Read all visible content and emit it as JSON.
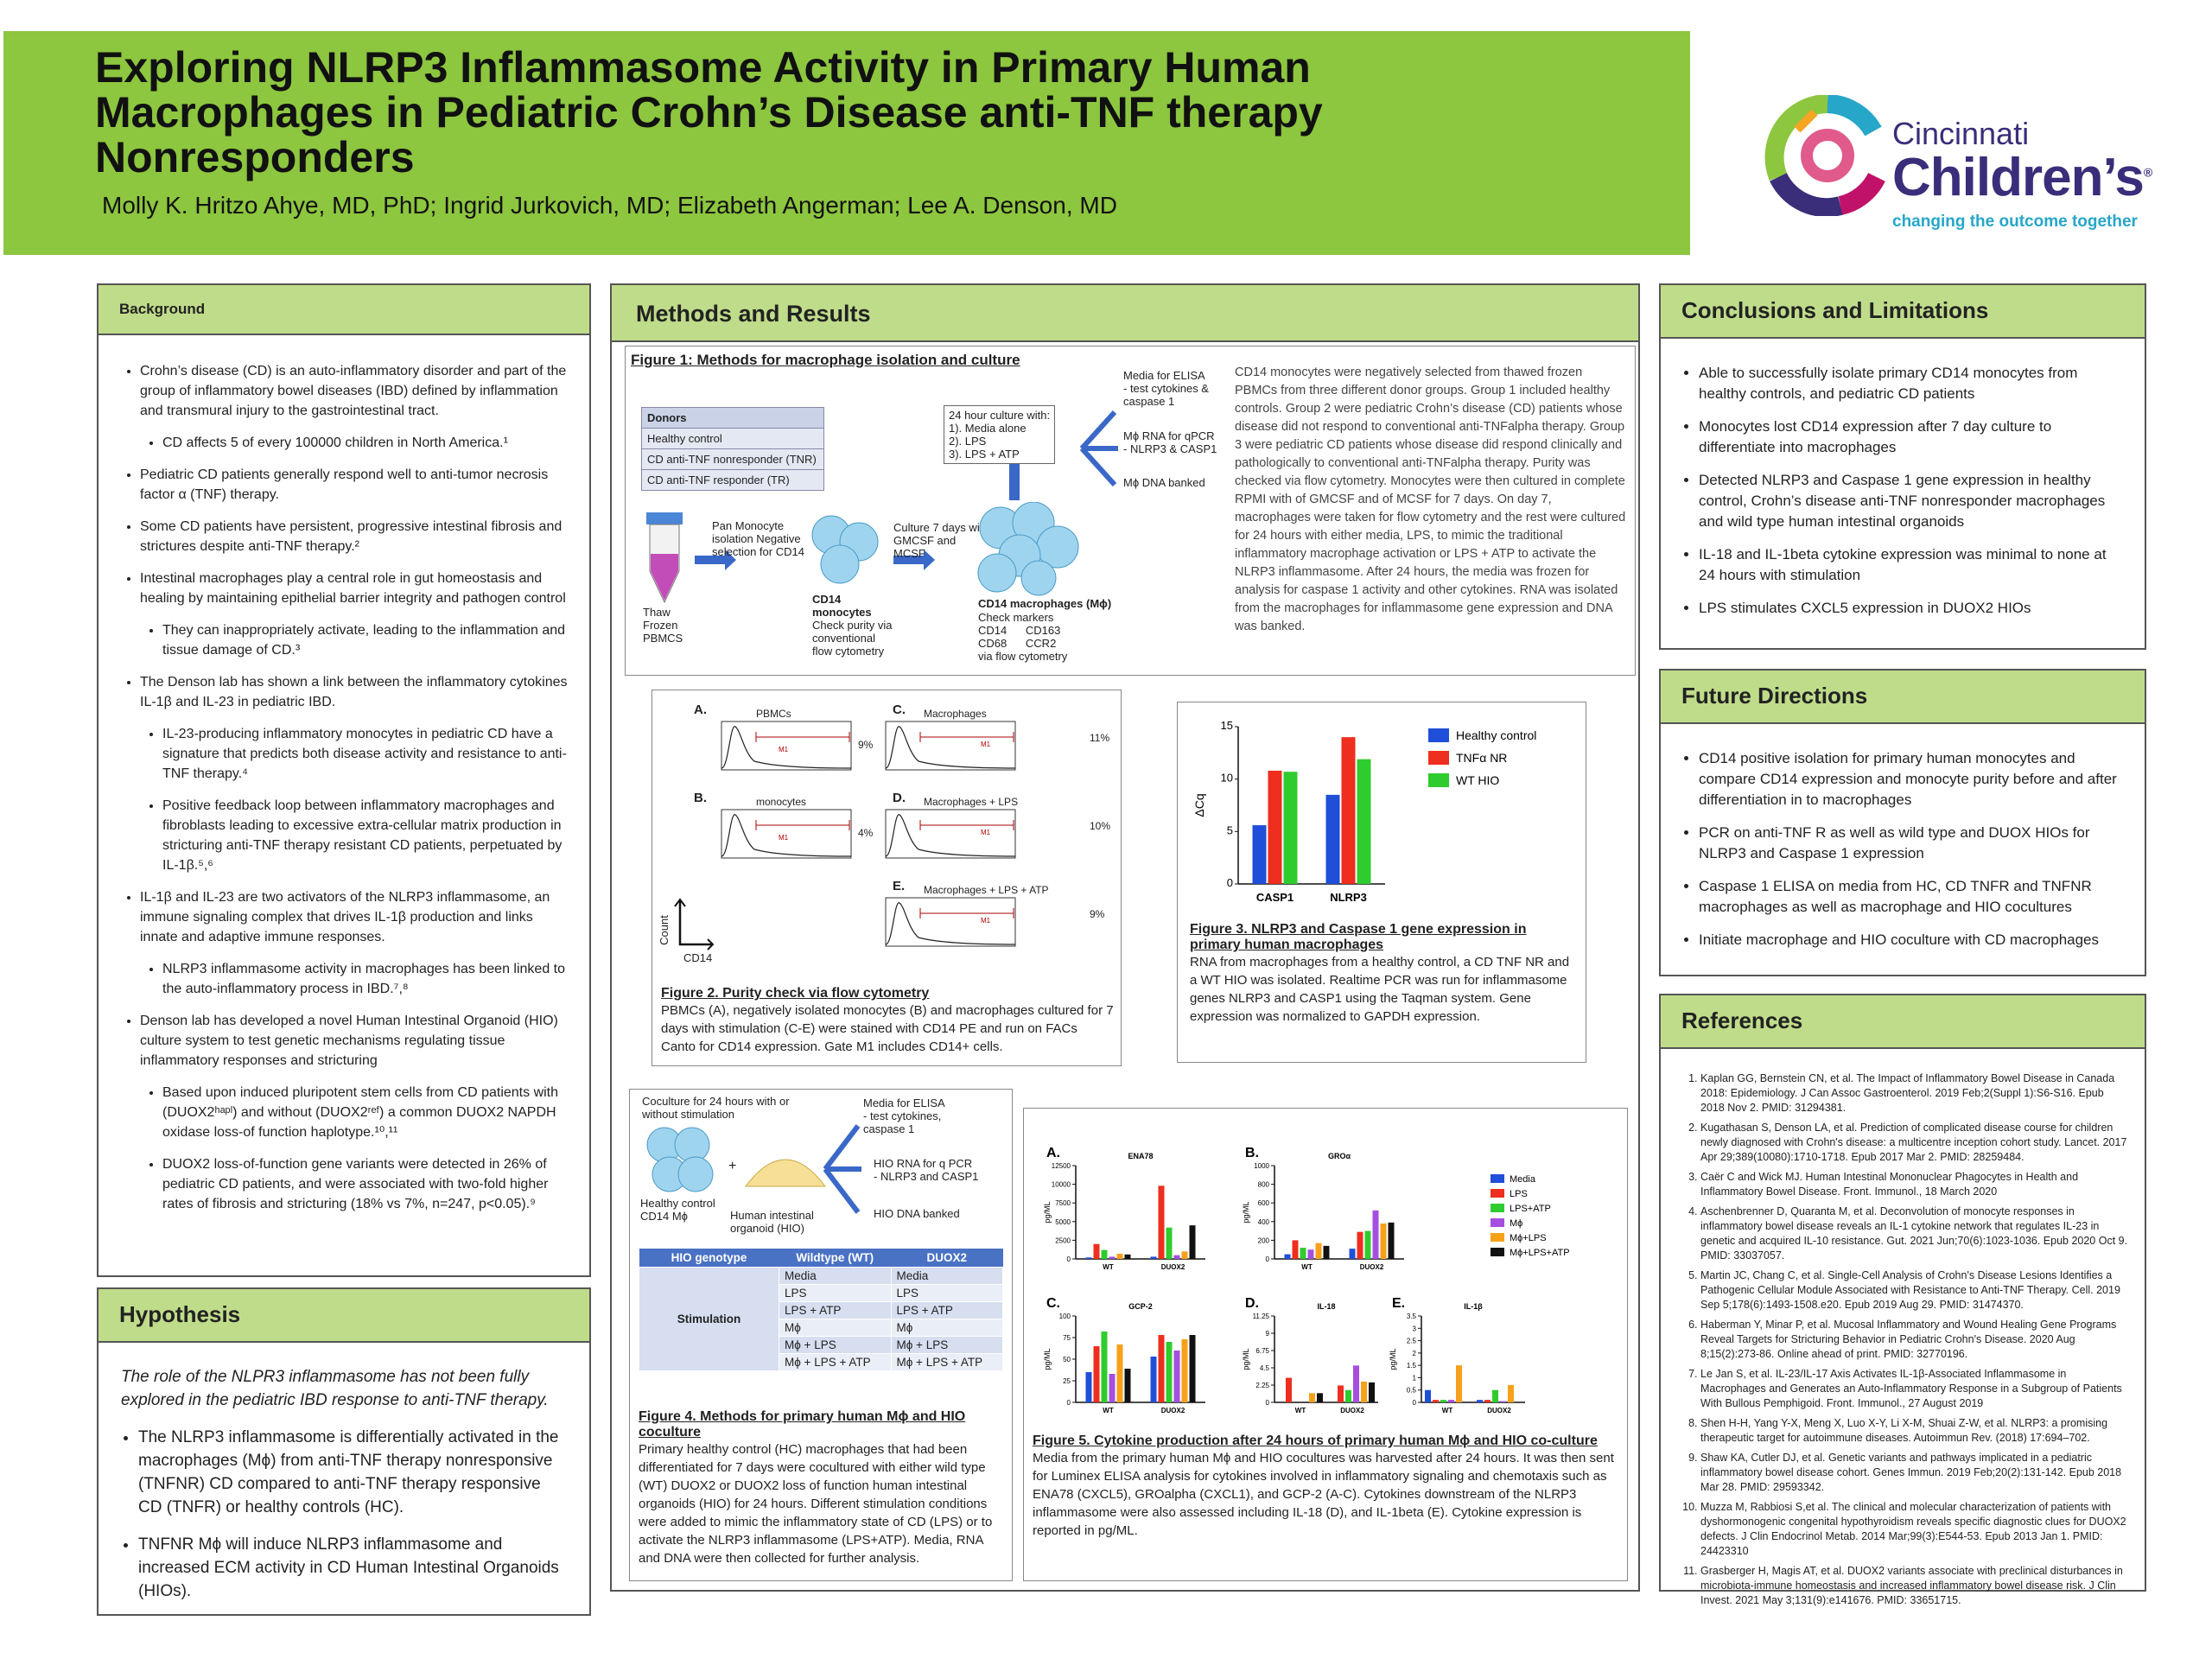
{
  "header": {
    "title_lines": [
      "Exploring NLRP3 Inflammasome Activity in Primary Human",
      "Macrophages in Pediatric Crohn’s Disease anti-TNF therapy",
      "Nonresponders"
    ],
    "authors": "Molly K. Hritzo Ahye, MD, PhD; Ingrid Jurkovich, MD; Elizabeth Angerman; Lee A. Denson, MD"
  },
  "logo": {
    "line1": "Cincinnati",
    "line2": "Children’s",
    "tagline": "changing the outcome together",
    "mark": "®"
  },
  "background": {
    "heading": "Background",
    "items": [
      {
        "level": 1,
        "text": "Crohn’s disease (CD) is an auto-inflammatory disorder and part of the group of inflammatory bowel diseases (IBD) defined by inflammation and transmural injury to the gastrointestinal tract."
      },
      {
        "level": 2,
        "text": "CD affects 5 of every 100000 children in North America.¹"
      },
      {
        "level": 1,
        "text": "Pediatric CD patients generally respond well to anti-tumor necrosis factor α (TNF) therapy."
      },
      {
        "level": 1,
        "text": "Some CD patients have persistent, progressive intestinal fibrosis and strictures despite anti-TNF therapy.²"
      },
      {
        "level": 1,
        "text": "Intestinal macrophages play a central role in gut homeostasis and healing by maintaining epithelial barrier integrity and pathogen control"
      },
      {
        "level": 2,
        "text": "They can inappropriately activate, leading to the inflammation and tissue damage of CD.³"
      },
      {
        "level": 1,
        "text": "The Denson lab has shown a link between the inflammatory cytokines IL-1β and IL-23 in pediatric IBD."
      },
      {
        "level": 2,
        "text": "IL-23-producing inflammatory monocytes in pediatric CD have a signature that predicts both disease activity and resistance to anti-TNF therapy.⁴"
      },
      {
        "level": 2,
        "text": "Positive feedback loop between inflammatory macrophages and fibroblasts leading to excessive extra-cellular matrix production in stricturing anti-TNF therapy resistant CD patients, perpetuated by IL-1β.⁵,⁶"
      },
      {
        "level": 1,
        "text": "IL-1β and IL-23 are two activators of the NLRP3 inflammasome, an immune signaling complex that drives IL-1β production and links innate and adaptive immune responses."
      },
      {
        "level": 2,
        "text": "NLRP3 inflammasome activity in macrophages has been linked to the auto-inflammatory process in IBD.⁷,⁸"
      },
      {
        "level": 1,
        "text": "Denson lab has developed a novel Human Intestinal Organoid (HIO) culture system to test genetic mechanisms regulating tissue inflammatory responses and stricturing"
      },
      {
        "level": 2,
        "text": "Based upon induced pluripotent stem cells from CD patients with (DUOX2ʰᵃᵖˡ) and without (DUOX2ʳᵉᶠ) a common DUOX2 NAPDH oxidase loss-of function haplotype.¹⁰,¹¹"
      },
      {
        "level": 2,
        "text": "DUOX2 loss-of-function gene variants were detected in 26% of pediatric CD patients, and were associated with two-fold higher rates of fibrosis and stricturing (18% vs 7%, n=247, p<0.05).⁹"
      }
    ]
  },
  "hypothesis": {
    "heading": "Hypothesis",
    "lead": "The role of the NLPR3 inflammasome has not been fully explored in the pediatric IBD response to anti-TNF therapy.",
    "items": [
      "The NLRP3 inflammasome is differentially activated in the macrophages (Mϕ) from anti-TNF therapy nonresponsive (TNFNR) CD compared to anti-TNF therapy responsive CD (TNFR) or healthy controls (HC).",
      "TNFNR Mϕ will induce NLRP3 inflammasome and increased ECM activity in CD Human Intestinal Organoids (HIOs)."
    ]
  },
  "methods": {
    "heading": "Methods and Results",
    "fig1": {
      "title": "Figure 1: Methods for macrophage isolation and culture",
      "donors_header": "Donors",
      "donors": [
        "Healthy control",
        "CD anti-TNF nonresponder (TNR)",
        "CD anti-TNF responder (TR)"
      ],
      "thaw": "Thaw\nFrozen\nPBMCS",
      "pan": "Pan Monocyte\nisolation Negative\nselection for CD14",
      "cd14_head": "CD14\nmonocytes",
      "cd14_body": "Check purity via\nconventional\nflow cytometry",
      "culture7": "Culture 7 days with\nGMCSF and\nMCSF",
      "mac_head": "CD14 macrophages (Mϕ)",
      "mac_body": "Check markers\nCD14      CD163\nCD68      CCR2\nvia flow cytometry",
      "culture24": "24 hour culture with:\n1). Media alone\n2). LPS\n3). LPS + ATP",
      "out1": "Media for ELISA\n- test cytokines &\ncaspase 1",
      "out2": "Mϕ RNA for qPCR\n- NLRP3 & CASP1",
      "out3": "Mϕ DNA banked",
      "text": "CD14 monocytes were negatively selected from thawed frozen PBMCs from three different donor groups. Group 1 included healthy controls. Group 2 were pediatric Crohn’s disease (CD) patients whose disease did not respond to conventional anti-TNFalpha therapy. Group 3 were pediatric CD patients whose disease did respond clinically and pathologically to conventional anti-TNFalpha therapy. Purity was checked via flow cytometry. Monocytes were then cultured in complete RPMI with of GMCSF and of MCSF for 7 days. On day 7, macrophages were taken for flow cytometry and the rest were cultured for 24 hours with either media, LPS, to mimic the traditional inflammatory macrophage activation or LPS + ATP to activate the NLRP3 inflammasome. After 24 hours, the media was frozen for analysis for caspase 1 activity and other cytokines. RNA was isolated from the macrophages for inflammasome gene expression and DNA was banked."
    },
    "fig2": {
      "panels": [
        {
          "letter": "A.",
          "name": "PBMCs",
          "pct": "9%"
        },
        {
          "letter": "B.",
          "name": "monocytes",
          "pct": "4%"
        },
        {
          "letter": "C.",
          "name": "Macrophages",
          "pct": "11%"
        },
        {
          "letter": "D.",
          "name": "Macrophages + LPS",
          "pct": "10%"
        },
        {
          "letter": "E.",
          "name": "Macrophages + LPS + ATP",
          "pct": "9%"
        }
      ],
      "gate": "M1",
      "xaxis": "CD14",
      "yaxis": "Count",
      "title": "Figure 2. Purity check via flow cytometry",
      "caption": "PBMCs (A), negatively isolated monocytes (B) and macrophages cultured for 7 days with stimulation (C-E) were stained with CD14 PE and run on FACs Canto for CD14 expression. Gate M1 includes CD14+ cells."
    },
    "fig3": {
      "title": "Figure 3. NLRP3 and Caspase 1 gene expression in primary human macrophages",
      "caption": "RNA from macrophages from a healthy control, a CD TNF NR and a WT HIO was isolated. Realtime PCR was run for inflammasome genes NLRP3 and CASP1 using the Taqman system. Gene expression was normalized to GAPDH expression."
    },
    "fig4": {
      "culture": "Coculture for 24 hours with or\nwithout stimulation",
      "out1": "Media for ELISA\n- test cytokines,\ncaspase 1",
      "out2": "HIO RNA for q PCR\n- NLRP3 and CASP1",
      "out3": "HIO DNA banked",
      "hc": "Healthy control\nCD14 Mϕ",
      "hio": "Human intestinal\norganoid (HIO)",
      "plus": "+",
      "table_header": [
        "HIO genotype",
        "Wildtype (WT)",
        "DUOX2"
      ],
      "stim_label": "Stimulation",
      "rows": [
        [
          "Media",
          "Media"
        ],
        [
          "LPS",
          "LPS"
        ],
        [
          "LPS + ATP",
          "LPS + ATP"
        ],
        [
          "Mϕ",
          "Mϕ"
        ],
        [
          "Mϕ + LPS",
          "Mϕ + LPS"
        ],
        [
          "Mϕ + LPS + ATP",
          "Mϕ + LPS + ATP"
        ]
      ],
      "title": "Figure 4. Methods for primary human Mϕ and HIO coculture",
      "caption": "Primary healthy control (HC) macrophages that had been differentiated for 7 days were cocultured with either wild type (WT) DUOX2 or DUOX2 loss of function human intestinal organoids (HIO) for 24 hours. Different stimulation conditions were added to mimic the inflammatory state of CD (LPS) or to activate the NLRP3 inflammasome (LPS+ATP). Media, RNA and DNA were then collected for further analysis."
    },
    "fig5": {
      "title": "Figure 5. Cytokine production after 24 hours of primary human Mϕ and HIO co-culture",
      "caption": "Media from the primary human Mϕ and HIO cocultures was harvested after 24 hours. It was then sent for Luminex ELISA analysis for cytokines involved in inflammatory signaling and chemotaxis such as ENA78 (CXCL5), GROalpha (CXCL1), and GCP-2 (A-C). Cytokines downstream of the NLRP3 inflammasome were also assessed including IL-18 (D), and IL-1beta (E). Cytokine expression is reported in pg/ML."
    }
  },
  "conclusions": {
    "heading": "Conclusions and Limitations",
    "items": [
      "Able to successfully isolate primary CD14 monocytes from healthy controls, and pediatric CD patients",
      "Monocytes lost CD14 expression after 7 day culture to differentiate into macrophages",
      "Detected NLRP3 and Caspase 1 gene expression in healthy control, Crohn’s disease anti-TNF nonresponder macrophages and wild type human intestinal organoids",
      "IL-18 and IL-1beta cytokine expression was minimal to none at 24 hours with stimulation",
      "LPS stimulates CXCL5 expression in DUOX2 HIOs"
    ]
  },
  "future": {
    "heading": "Future Directions",
    "items": [
      "CD14 positive isolation for primary human monocytes and compare CD14 expression and monocyte purity before and after differentiation in to macrophages",
      "PCR on anti-TNF R as well as wild type and DUOX HIOs for NLRP3 and Caspase 1 expression",
      "Caspase 1 ELISA on media from HC, CD TNFR and TNFNR macrophages as well as macrophage and HIO cocultures",
      "Initiate macrophage and HIO coculture with CD macrophages"
    ]
  },
  "references": {
    "heading": "References",
    "items": [
      "Kaplan GG, Bernstein CN, et al. The Impact of Inflammatory Bowel Disease in Canada 2018: Epidemiology. J Can Assoc Gastroenterol. 2019 Feb;2(Suppl 1):S6-S16. Epub 2018 Nov 2. PMID: 31294381.",
      "Kugathasan S, Denson LA, et al. Prediction of complicated disease course for children newly diagnosed with Crohn's disease: a multicentre inception cohort study. Lancet. 2017 Apr 29;389(10080):1710-1718. Epub 2017 Mar 2. PMID: 28259484.",
      "Caër C and Wick MJ. Human Intestinal Mononuclear Phagocytes in Health and Inflammatory Bowel Disease. Front. Immunol., 18 March 2020",
      "Aschenbrenner D, Quaranta M, et al. Deconvolution of monocyte responses in inflammatory bowel disease reveals an IL-1 cytokine network that regulates IL-23 in genetic and acquired IL-10 resistance. Gut. 2021 Jun;70(6):1023-1036. Epub 2020 Oct 9. PMID: 33037057.",
      "Martin JC, Chang C, et al. Single-Cell Analysis of Crohn's Disease Lesions Identifies a Pathogenic Cellular Module Associated with Resistance to Anti-TNF Therapy. Cell. 2019 Sep 5;178(6):1493-1508.e20. Epub 2019 Aug 29. PMID: 31474370.",
      "Haberman Y, Minar P, et al. Mucosal Inflammatory and Wound Healing Gene Programs Reveal Targets for Stricturing Behavior in Pediatric Crohn's Disease. 2020 Aug 8;15(2):273-86. Online ahead of print. PMID: 32770196.",
      "Le Jan S, et al. IL-23/IL-17 Axis Activates IL-1β-Associated Inflammasome in Macrophages and Generates an Auto-Inflammatory Response in a Subgroup of Patients With Bullous Pemphigoid. Front. Immunol., 27 August 2019",
      "Shen H-H, Yang Y-X, Meng X, Luo X-Y, Li X-M, Shuai Z-W, et al. NLRP3: a promising therapeutic target for autoimmune diseases. Autoimmun Rev. (2018) 17:694–702.",
      "Shaw KA, Cutler DJ, et al. Genetic variants and pathways implicated in a pediatric inflammatory bowel disease cohort. Genes Immun. 2019 Feb;20(2):131-142. Epub 2018 Mar 28. PMID: 29593342.",
      "Muzza M, Rabbiosi S,et al. The clinical and molecular characterization of patients with dyshormonogenic congenital hypothyroidism reveals specific diagnostic clues for DUOX2 defects. J Clin Endocrinol Metab. 2014 Mar;99(3):E544-53. Epub 2013 Jan 1. PMID: 24423310",
      "Grasberger H, Magis AT, et al. DUOX2 variants associate with preclinical disturbances in microbiota-immune homeostasis and increased inflammatory bowel disease risk. J Clin Invest. 2021 May 3;131(9):e141676. PMID: 33651715."
    ]
  },
  "chart_data": [
    {
      "type": "bar",
      "ylabel": "ΔCq",
      "ylim": [
        0,
        15
      ],
      "yticks": [
        0,
        5,
        10,
        15
      ],
      "categories": [
        "CASP1",
        "NLRP3"
      ],
      "series": [
        {
          "name": "Healthy control",
          "color": "#1f4fd8",
          "values": [
            5.6,
            8.5
          ]
        },
        {
          "name": "TNFα NR",
          "color": "#ee2e1e",
          "values": [
            10.8,
            14.0
          ]
        },
        {
          "name": "WT HIO",
          "color": "#2ecc2e",
          "values": [
            10.7,
            11.9
          ]
        }
      ]
    },
    {
      "type": "bar",
      "panel": "A.",
      "title": "ENA78",
      "ylabel": "pg/ML",
      "ylim": [
        0,
        12500
      ],
      "yticks": [
        0,
        2500,
        5000,
        7500,
        10000,
        12500
      ],
      "categories": [
        "WT",
        "DUOX2"
      ],
      "series": [
        {
          "name": "Media",
          "color": "#1f4fd8",
          "values": [
            200,
            300
          ]
        },
        {
          "name": "LPS",
          "color": "#ee2e1e",
          "values": [
            2000,
            9800
          ]
        },
        {
          "name": "LPS+ATP",
          "color": "#2ecc2e",
          "values": [
            1200,
            4200
          ]
        },
        {
          "name": "Mϕ",
          "color": "#a64ee0",
          "values": [
            300,
            500
          ]
        },
        {
          "name": "Mϕ+LPS",
          "color": "#f7a11a",
          "values": [
            700,
            1000
          ]
        },
        {
          "name": "Mϕ+LPS+ATP",
          "color": "#111111",
          "values": [
            600,
            4500
          ]
        }
      ]
    },
    {
      "type": "bar",
      "panel": "B.",
      "title": "GROα",
      "ylabel": "pg/ML",
      "ylim": [
        0,
        1000
      ],
      "yticks": [
        0,
        200,
        400,
        600,
        800,
        1000
      ],
      "categories": [
        "WT",
        "DUOX2"
      ],
      "series": [
        {
          "name": "Media",
          "color": "#1f4fd8",
          "values": [
            50,
            110
          ]
        },
        {
          "name": "LPS",
          "color": "#ee2e1e",
          "values": [
            200,
            290
          ]
        },
        {
          "name": "LPS+ATP",
          "color": "#2ecc2e",
          "values": [
            120,
            300
          ]
        },
        {
          "name": "Mϕ",
          "color": "#a64ee0",
          "values": [
            100,
            520
          ]
        },
        {
          "name": "Mϕ+LPS",
          "color": "#f7a11a",
          "values": [
            170,
            380
          ]
        },
        {
          "name": "Mϕ+LPS+ATP",
          "color": "#111111",
          "values": [
            140,
            390
          ]
        }
      ]
    },
    {
      "type": "bar",
      "panel": "C.",
      "title": "GCP-2",
      "ylabel": "pg/ML",
      "ylim": [
        0,
        100
      ],
      "yticks": [
        0,
        25,
        50,
        75,
        100
      ],
      "categories": [
        "WT",
        "DUOX2"
      ],
      "series": [
        {
          "name": "Media",
          "color": "#1f4fd8",
          "values": [
            35,
            53
          ]
        },
        {
          "name": "LPS",
          "color": "#ee2e1e",
          "values": [
            65,
            78
          ]
        },
        {
          "name": "LPS+ATP",
          "color": "#2ecc2e",
          "values": [
            82,
            70
          ]
        },
        {
          "name": "Mϕ",
          "color": "#a64ee0",
          "values": [
            33,
            60
          ]
        },
        {
          "name": "Mϕ+LPS",
          "color": "#f7a11a",
          "values": [
            67,
            73
          ]
        },
        {
          "name": "Mϕ+LPS+ATP",
          "color": "#111111",
          "values": [
            39,
            78
          ]
        }
      ]
    },
    {
      "type": "bar",
      "panel": "D.",
      "title": "IL-18",
      "ylabel": "pg/ML",
      "ylim": [
        0,
        11.25
      ],
      "yticks": [
        0,
        2.25,
        4.5,
        6.75,
        9,
        11.25
      ],
      "categories": [
        "WT",
        "DUOX2"
      ],
      "series": [
        {
          "name": "Media",
          "color": "#1f4fd8",
          "values": [
            0,
            0
          ]
        },
        {
          "name": "LPS",
          "color": "#ee2e1e",
          "values": [
            3.2,
            2.2
          ]
        },
        {
          "name": "LPS+ATP",
          "color": "#2ecc2e",
          "values": [
            0,
            1.6
          ]
        },
        {
          "name": "Mϕ",
          "color": "#a64ee0",
          "values": [
            0,
            4.8
          ]
        },
        {
          "name": "Mϕ+LPS",
          "color": "#f7a11a",
          "values": [
            1.2,
            2.7
          ]
        },
        {
          "name": "Mϕ+LPS+ATP",
          "color": "#111111",
          "values": [
            1.2,
            2.6
          ]
        }
      ]
    },
    {
      "type": "bar",
      "panel": "E.",
      "title": "IL-1β",
      "ylabel": "pg/ML",
      "ylim": [
        0,
        3.5
      ],
      "yticks": [
        0,
        0.5,
        1,
        1.5,
        2,
        2.5,
        3,
        3.5
      ],
      "categories": [
        "WT",
        "DUOX2"
      ],
      "series": [
        {
          "name": "Media",
          "color": "#1f4fd8",
          "values": [
            0.5,
            0.1
          ]
        },
        {
          "name": "LPS",
          "color": "#ee2e1e",
          "values": [
            0.1,
            0.1
          ]
        },
        {
          "name": "LPS+ATP",
          "color": "#2ecc2e",
          "values": [
            0.1,
            0.5
          ]
        },
        {
          "name": "Mϕ",
          "color": "#a64ee0",
          "values": [
            0.1,
            0.05
          ]
        },
        {
          "name": "Mϕ+LPS",
          "color": "#f7a11a",
          "values": [
            1.5,
            0.7
          ]
        },
        {
          "name": "Mϕ+LPS+ATP",
          "color": "#111111",
          "values": [
            0,
            0
          ]
        }
      ]
    }
  ]
}
